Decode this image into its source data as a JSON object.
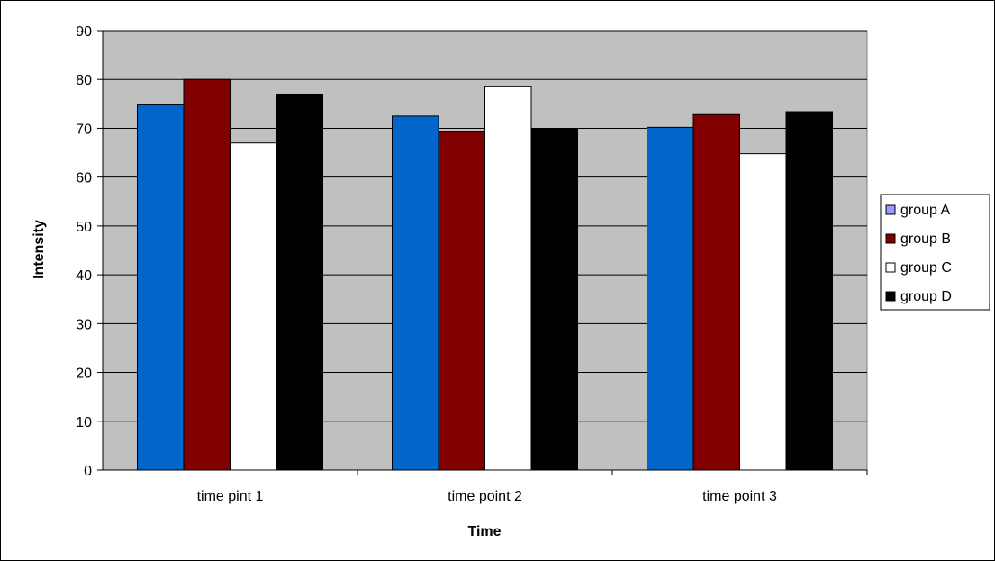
{
  "chart_data": {
    "type": "bar",
    "title": "",
    "xlabel": "Time",
    "ylabel": "Intensity",
    "categories": [
      "time pint 1",
      "time point 2",
      "time point 3"
    ],
    "ylim": [
      0,
      90
    ],
    "ytick_step": 10,
    "yticks": [
      "0",
      "10",
      "20",
      "30",
      "40",
      "50",
      "60",
      "70",
      "80",
      "90"
    ],
    "grid": "horizontal",
    "legend_position": "right",
    "plot_background": "#c0c0c0",
    "series": [
      {
        "name": "group A",
        "values": [
          74.8,
          72.5,
          70.2
        ],
        "color": "#0066cc",
        "legend_color": "#9999ff"
      },
      {
        "name": "group B",
        "values": [
          80.0,
          69.3,
          72.8
        ],
        "color": "#800000",
        "legend_color": "#800000"
      },
      {
        "name": "group C",
        "values": [
          67.0,
          78.5,
          64.8
        ],
        "color": "#ffffff",
        "legend_color": "#ffffff"
      },
      {
        "name": "group D",
        "values": [
          77.0,
          69.9,
          73.4
        ],
        "color": "#000000",
        "legend_color": "#000000"
      }
    ]
  }
}
